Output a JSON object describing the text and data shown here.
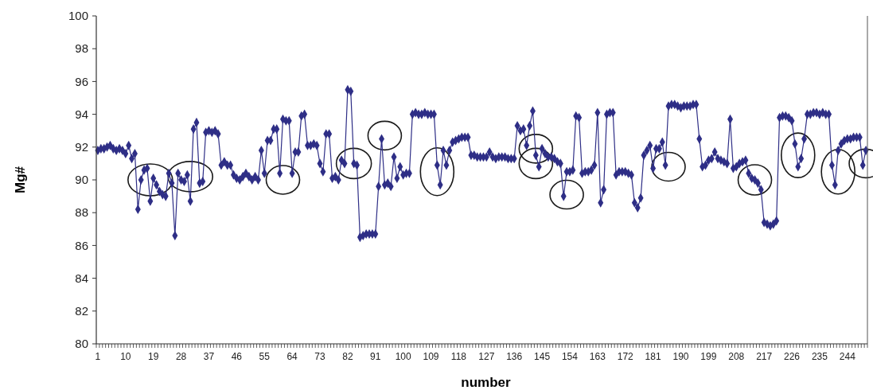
{
  "chart_data": {
    "type": "line",
    "xlabel": "number",
    "ylabel": "Mg#",
    "ylim": [
      80,
      100
    ],
    "yticks": [
      80,
      82,
      84,
      86,
      88,
      90,
      92,
      94,
      96,
      98,
      100
    ],
    "grid": false,
    "marker": "diamond",
    "line_style": "solid",
    "categories": [
      "1",
      null,
      null,
      null,
      null,
      null,
      null,
      null,
      null,
      "10",
      null,
      null,
      null,
      null,
      null,
      null,
      null,
      null,
      "19",
      null,
      null,
      null,
      null,
      null,
      null,
      null,
      null,
      "28",
      null,
      null,
      null,
      null,
      null,
      null,
      null,
      null,
      "37",
      null,
      null,
      null,
      null,
      null,
      null,
      null,
      null,
      "46",
      null,
      null,
      null,
      null,
      null,
      null,
      null,
      null,
      "55",
      null,
      null,
      null,
      null,
      null,
      null,
      null,
      null,
      "64",
      null,
      null,
      null,
      null,
      null,
      null,
      null,
      null,
      "73",
      null,
      null,
      null,
      null,
      null,
      null,
      null,
      null,
      "82",
      null,
      null,
      null,
      null,
      null,
      null,
      null,
      null,
      "91",
      null,
      null,
      null,
      null,
      null,
      null,
      null,
      null,
      "100",
      null,
      null,
      null,
      null,
      null,
      null,
      null,
      null,
      "109",
      null,
      null,
      null,
      null,
      null,
      null,
      null,
      null,
      "118",
      null,
      null,
      null,
      null,
      null,
      null,
      null,
      null,
      "127",
      null,
      null,
      null,
      null,
      null,
      null,
      null,
      null,
      "136",
      null,
      null,
      null,
      null,
      null,
      null,
      null,
      null,
      "145",
      null,
      null,
      null,
      null,
      null,
      null,
      null,
      null,
      "154",
      null,
      null,
      null,
      null,
      null,
      null,
      null,
      null,
      "163",
      null,
      null,
      null,
      null,
      null,
      null,
      null,
      null,
      "172",
      null,
      null,
      null,
      null,
      null,
      null,
      null,
      null,
      "181",
      null,
      null,
      null,
      null,
      null,
      null,
      null,
      null,
      "190",
      null,
      null,
      null,
      null,
      null,
      null,
      null,
      null,
      "199",
      null,
      null,
      null,
      null,
      null,
      null,
      null,
      null,
      "208",
      null,
      null,
      null,
      null,
      null,
      null,
      null,
      null,
      "217",
      null,
      null,
      null,
      null,
      null,
      null,
      null,
      null,
      "226",
      null,
      null,
      null,
      null,
      null,
      null,
      null,
      null,
      "235",
      null,
      null,
      null,
      null,
      null,
      null,
      null,
      null,
      "244",
      null,
      null,
      null,
      null,
      null,
      null
    ],
    "series": [
      {
        "color": "#2e2e86",
        "values": [
          91.8,
          91.9,
          91.9,
          92.0,
          92.1,
          91.9,
          91.8,
          91.9,
          91.8,
          91.6,
          92.1,
          91.3,
          91.6,
          88.2,
          90.0,
          90.6,
          90.7,
          88.7,
          90.1,
          89.7,
          89.3,
          89.1,
          89.0,
          90.4,
          89.8,
          86.6,
          90.4,
          90.0,
          89.9,
          90.3,
          88.7,
          93.1,
          93.5,
          89.8,
          89.9,
          92.9,
          93.0,
          92.9,
          93.0,
          92.8,
          90.9,
          91.1,
          90.9,
          90.9,
          90.3,
          90.1,
          90.0,
          90.2,
          90.4,
          90.2,
          90.0,
          90.2,
          90.0,
          91.8,
          90.4,
          92.4,
          92.4,
          93.1,
          93.1,
          90.4,
          93.7,
          93.6,
          93.6,
          90.4,
          91.7,
          91.7,
          93.9,
          94.0,
          92.1,
          92.1,
          92.2,
          92.1,
          91.0,
          90.5,
          92.8,
          92.8,
          90.1,
          90.2,
          90.0,
          91.2,
          91.0,
          95.5,
          95.4,
          91.0,
          90.9,
          86.5,
          86.6,
          86.7,
          86.7,
          86.7,
          86.7,
          89.6,
          92.5,
          89.7,
          89.8,
          89.6,
          91.4,
          90.1,
          90.8,
          90.3,
          90.4,
          90.4,
          94.0,
          94.1,
          94.0,
          94.0,
          94.1,
          94.0,
          94.0,
          94.0,
          90.9,
          89.7,
          91.8,
          90.9,
          91.8,
          92.3,
          92.4,
          92.5,
          92.6,
          92.6,
          92.6,
          91.5,
          91.5,
          91.4,
          91.4,
          91.4,
          91.4,
          91.7,
          91.4,
          91.3,
          91.4,
          91.4,
          91.4,
          91.3,
          91.3,
          91.3,
          93.3,
          93.0,
          93.1,
          92.1,
          93.3,
          94.2,
          91.5,
          90.8,
          91.9,
          91.6,
          91.4,
          91.4,
          91.3,
          91.1,
          91.0,
          89.0,
          90.5,
          90.5,
          90.6,
          93.9,
          93.8,
          90.4,
          90.5,
          90.5,
          90.6,
          90.9,
          94.1,
          88.6,
          89.4,
          94.0,
          94.1,
          94.1,
          90.3,
          90.5,
          90.5,
          90.5,
          90.4,
          90.3,
          88.6,
          88.3,
          88.9,
          91.5,
          91.8,
          92.1,
          90.7,
          91.9,
          91.9,
          92.3,
          90.9,
          94.5,
          94.6,
          94.6,
          94.5,
          94.4,
          94.5,
          94.5,
          94.5,
          94.6,
          94.6,
          92.5,
          90.8,
          90.9,
          91.2,
          91.3,
          91.7,
          91.3,
          91.2,
          91.1,
          91.0,
          93.7,
          90.7,
          90.8,
          91.0,
          91.1,
          91.2,
          90.4,
          90.1,
          90.0,
          89.8,
          89.4,
          87.4,
          87.3,
          87.2,
          87.3,
          87.5,
          93.8,
          93.9,
          93.9,
          93.8,
          93.6,
          92.2,
          90.8,
          91.3,
          92.5,
          94.0,
          94.0,
          94.1,
          94.1,
          94.0,
          94.1,
          94.0,
          94.0,
          90.9,
          89.7,
          91.8,
          92.2,
          92.4,
          92.5,
          92.5,
          92.6,
          92.6,
          92.6,
          90.9,
          91.8
        ]
      }
    ]
  }
}
